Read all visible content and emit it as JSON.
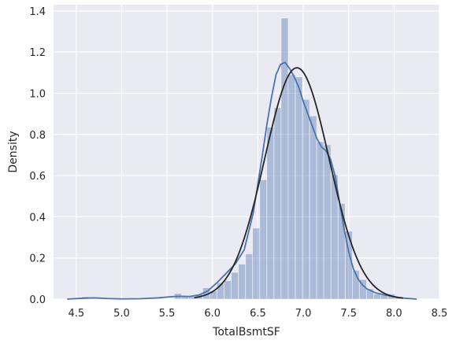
{
  "chart_data": {
    "type": "histogram",
    "xlabel": "TotalBsmtSF",
    "ylabel": "Density",
    "xlim": [
      4.25,
      8.5
    ],
    "ylim": [
      0,
      1.43
    ],
    "xticks": [
      4.5,
      5.0,
      5.5,
      6.0,
      6.5,
      7.0,
      7.5,
      8.0,
      8.5
    ],
    "xtick_labels": [
      "4.5",
      "5.0",
      "5.5",
      "6.0",
      "6.5",
      "7.0",
      "7.5",
      "8.0",
      "8.5"
    ],
    "yticks": [
      0.0,
      0.2,
      0.4,
      0.6,
      0.8,
      1.0,
      1.2,
      1.4
    ],
    "ytick_labels": [
      "0.0",
      "0.2",
      "0.4",
      "0.6",
      "0.8",
      "1.0",
      "1.2",
      "1.4"
    ],
    "grid": true,
    "background": "#eaeaf2",
    "colors": {
      "bars": "#4c72b0",
      "kde": "#4c72b0",
      "normal_fit": "#262626"
    },
    "histogram": {
      "bin_width": 0.0784,
      "bins": [
        {
          "x0": 4.56,
          "density": 0.012
        },
        {
          "x0": 5.58,
          "density": 0.028
        },
        {
          "x0": 5.658,
          "density": 0.012
        },
        {
          "x0": 5.737,
          "density": 0.012
        },
        {
          "x0": 5.815,
          "density": 0.024
        },
        {
          "x0": 5.894,
          "density": 0.055
        },
        {
          "x0": 5.972,
          "density": 0.04
        },
        {
          "x0": 6.05,
          "density": 0.08
        },
        {
          "x0": 6.129,
          "density": 0.09
        },
        {
          "x0": 6.207,
          "density": 0.13
        },
        {
          "x0": 6.286,
          "density": 0.17
        },
        {
          "x0": 6.364,
          "density": 0.22
        },
        {
          "x0": 6.442,
          "density": 0.345
        },
        {
          "x0": 6.521,
          "density": 0.58
        },
        {
          "x0": 6.599,
          "density": 0.835
        },
        {
          "x0": 6.678,
          "density": 0.93
        },
        {
          "x0": 6.756,
          "density": 1.365
        },
        {
          "x0": 6.834,
          "density": 1.09
        },
        {
          "x0": 6.913,
          "density": 1.08
        },
        {
          "x0": 6.991,
          "density": 0.97
        },
        {
          "x0": 7.07,
          "density": 0.89
        },
        {
          "x0": 7.148,
          "density": 0.765
        },
        {
          "x0": 7.226,
          "density": 0.75
        },
        {
          "x0": 7.305,
          "density": 0.605
        },
        {
          "x0": 7.383,
          "density": 0.465
        },
        {
          "x0": 7.462,
          "density": 0.33
        },
        {
          "x0": 7.54,
          "density": 0.14
        },
        {
          "x0": 7.618,
          "density": 0.095
        },
        {
          "x0": 7.697,
          "density": 0.05
        },
        {
          "x0": 7.775,
          "density": 0.025
        },
        {
          "x0": 7.854,
          "density": 0.02
        },
        {
          "x0": 7.932,
          "density": 0.025
        },
        {
          "x0": 8.01,
          "density": 0.012
        }
      ]
    },
    "kde": {
      "x": [
        4.4,
        4.6,
        4.7,
        4.85,
        5.0,
        5.2,
        5.4,
        5.55,
        5.65,
        5.75,
        5.85,
        5.95,
        6.05,
        6.15,
        6.25,
        6.35,
        6.45,
        6.55,
        6.6,
        6.65,
        6.7,
        6.75,
        6.8,
        6.85,
        6.9,
        6.95,
        7.0,
        7.05,
        7.1,
        7.15,
        7.2,
        7.25,
        7.3,
        7.35,
        7.4,
        7.45,
        7.5,
        7.55,
        7.6,
        7.65,
        7.7,
        7.8,
        7.9,
        8.0,
        8.1,
        8.25
      ],
      "y": [
        0.0,
        0.005,
        0.006,
        0.003,
        0.001,
        0.002,
        0.006,
        0.012,
        0.014,
        0.013,
        0.02,
        0.04,
        0.08,
        0.125,
        0.17,
        0.24,
        0.42,
        0.7,
        0.85,
        0.98,
        1.09,
        1.14,
        1.15,
        1.12,
        1.08,
        1.03,
        0.96,
        0.9,
        0.84,
        0.78,
        0.74,
        0.72,
        0.68,
        0.6,
        0.47,
        0.34,
        0.23,
        0.15,
        0.1,
        0.07,
        0.05,
        0.03,
        0.02,
        0.012,
        0.005,
        0.0
      ]
    },
    "normal_fit": {
      "mean": 6.93,
      "std": 0.355,
      "x_range": [
        5.8,
        8.1
      ]
    }
  }
}
